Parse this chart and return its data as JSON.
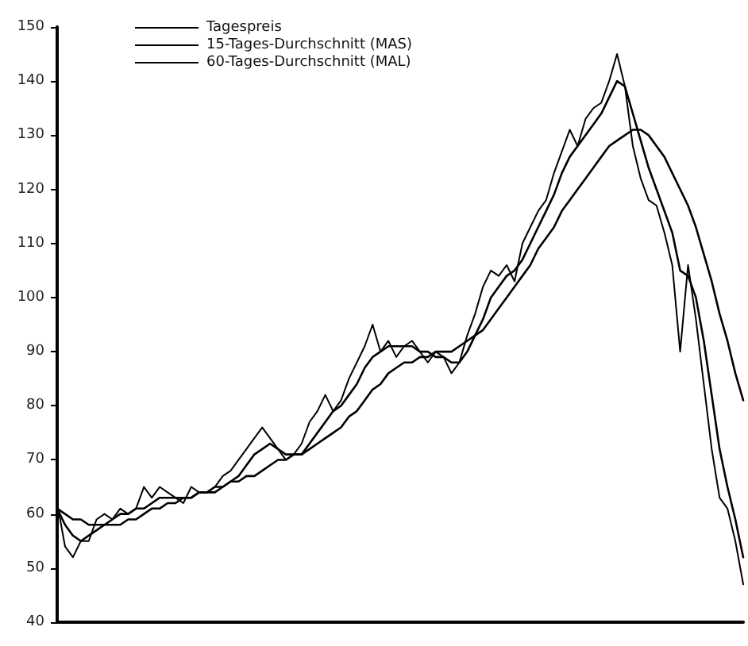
{
  "chart_data": {
    "type": "line",
    "categories": [
      null,
      null,
      null,
      null,
      null,
      null,
      null,
      null,
      null,
      null,
      null,
      null,
      null,
      null,
      null,
      null,
      null,
      null,
      null,
      null,
      null,
      null,
      null,
      null,
      null,
      null,
      null,
      null,
      null,
      null,
      null,
      null,
      null,
      null,
      null,
      null,
      null,
      null,
      null,
      null,
      null,
      null,
      null,
      null,
      null,
      null,
      null,
      null,
      null,
      null,
      null,
      null,
      null,
      null,
      null,
      null,
      null,
      null,
      null,
      null,
      null,
      null,
      null,
      null,
      null,
      null,
      null,
      null,
      null,
      null,
      null,
      null,
      null,
      null,
      null,
      null,
      null,
      null,
      null,
      null,
      null,
      null,
      null,
      null,
      null,
      null,
      null,
      null
    ],
    "series": [
      {
        "name": "Tagespreis",
        "color": "#000000",
        "values": [
          62,
          54,
          52,
          55,
          55,
          59,
          60,
          59,
          61,
          60,
          61,
          65,
          63,
          65,
          64,
          63,
          62,
          65,
          64,
          64,
          65,
          67,
          68,
          70,
          72,
          74,
          76,
          74,
          72,
          70,
          71,
          73,
          77,
          79,
          82,
          79,
          81,
          85,
          88,
          91,
          95,
          90,
          92,
          89,
          91,
          92,
          90,
          88,
          90,
          89,
          86,
          88,
          93,
          97,
          102,
          105,
          104,
          106,
          103,
          110,
          113,
          116,
          118,
          123,
          127,
          131,
          128,
          133,
          135,
          136,
          140,
          145,
          139,
          128,
          122,
          118,
          117,
          112,
          106,
          90,
          106,
          96,
          84,
          72,
          63,
          61,
          55,
          47
        ]
      },
      {
        "name": "15-Tages-Durchschnitt (MAS)",
        "color": "#000000",
        "values": [
          61,
          58,
          56,
          55,
          56,
          57,
          58,
          59,
          60,
          60,
          61,
          61,
          62,
          63,
          63,
          63,
          63,
          63,
          64,
          64,
          64,
          65,
          66,
          67,
          69,
          71,
          72,
          73,
          72,
          71,
          71,
          71,
          73,
          75,
          77,
          79,
          80,
          82,
          84,
          87,
          89,
          90,
          91,
          91,
          91,
          91,
          90,
          90,
          89,
          89,
          88,
          88,
          90,
          93,
          96,
          100,
          102,
          104,
          105,
          107,
          110,
          113,
          116,
          119,
          123,
          126,
          128,
          130,
          132,
          134,
          137,
          140,
          139,
          134,
          129,
          124,
          120,
          116,
          112,
          105,
          104,
          100,
          92,
          82,
          72,
          65,
          59,
          52
        ]
      },
      {
        "name": "60-Tages-Durchschnitt (MAL)",
        "color": "#000000",
        "values": [
          61,
          60,
          59,
          59,
          58,
          58,
          58,
          58,
          58,
          59,
          59,
          60,
          61,
          61,
          62,
          62,
          63,
          63,
          64,
          64,
          65,
          65,
          66,
          66,
          67,
          67,
          68,
          69,
          70,
          70,
          71,
          71,
          72,
          73,
          74,
          75,
          76,
          78,
          79,
          81,
          83,
          84,
          86,
          87,
          88,
          88,
          89,
          89,
          90,
          90,
          90,
          91,
          92,
          93,
          94,
          96,
          98,
          100,
          102,
          104,
          106,
          109,
          111,
          113,
          116,
          118,
          120,
          122,
          124,
          126,
          128,
          129,
          130,
          131,
          131,
          130,
          128,
          126,
          123,
          120,
          117,
          113,
          108,
          103,
          97,
          92,
          86,
          81
        ]
      }
    ],
    "ylim": [
      40,
      150
    ],
    "yticks": [
      40,
      50,
      60,
      70,
      80,
      90,
      100,
      110,
      120,
      130,
      140,
      150
    ],
    "grid": false,
    "legend": "top left",
    "marker": "none",
    "line_style": "solid"
  }
}
